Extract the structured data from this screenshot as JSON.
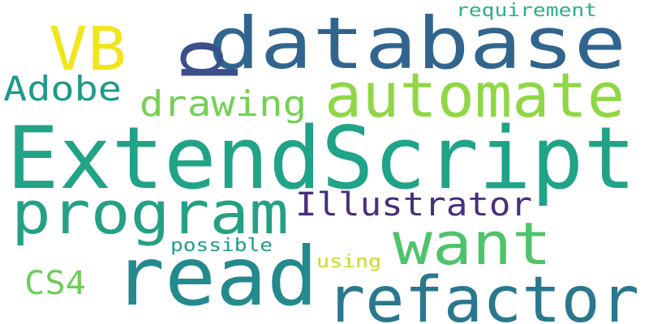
{
  "word_cloud": {
    "words": [
      {
        "text": "ExtendScript",
        "color": "#20a386"
      },
      {
        "text": "database",
        "color": "#31658e"
      },
      {
        "text": "read",
        "color": "#238a8d"
      },
      {
        "text": "refactor",
        "color": "#2a788e"
      },
      {
        "text": "program",
        "color": "#25a085"
      },
      {
        "text": "automate",
        "color": "#8fd744"
      },
      {
        "text": "want",
        "color": "#4ec36b"
      },
      {
        "text": "VB",
        "color": "#f1e51d"
      },
      {
        "text": "p",
        "color": "#3b4f8c"
      },
      {
        "text": "Illustrator",
        "color": "#472f7d"
      },
      {
        "text": "drawing",
        "color": "#75d054"
      },
      {
        "text": "Adobe",
        "color": "#1f998a"
      },
      {
        "text": "CS4",
        "color": "#6ccd5a"
      },
      {
        "text": "requirement",
        "color": "#2ab07f"
      },
      {
        "text": "possible",
        "color": "#1f9a8a"
      },
      {
        "text": "using",
        "color": "#c2df23"
      }
    ]
  }
}
